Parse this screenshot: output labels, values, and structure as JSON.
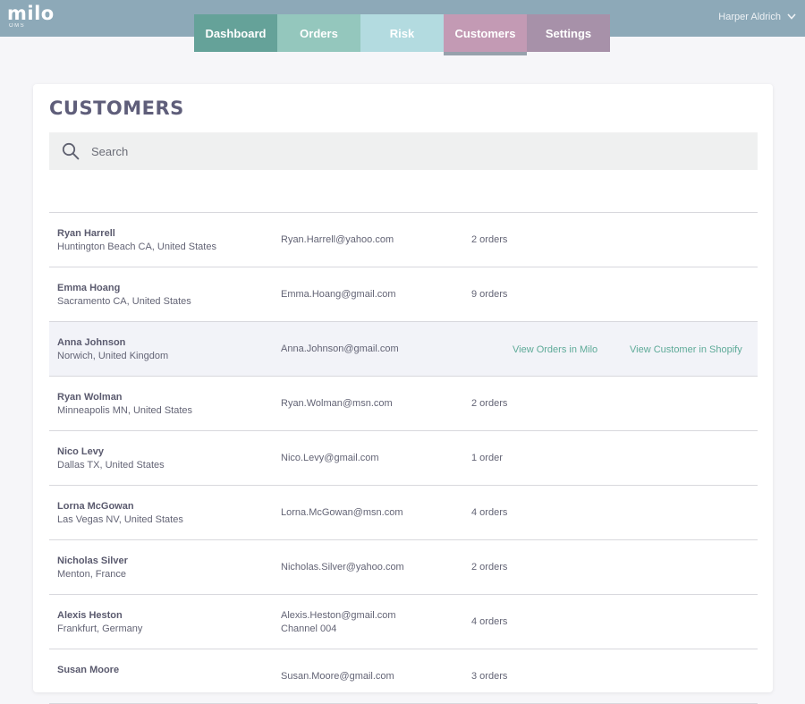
{
  "app": {
    "logo": "milo",
    "logo_sub": "OMS"
  },
  "nav": {
    "tabs": [
      {
        "label": "Dashboard"
      },
      {
        "label": "Orders"
      },
      {
        "label": "Risk"
      },
      {
        "label": "Customers",
        "active": true
      },
      {
        "label": "Settings"
      }
    ]
  },
  "user": {
    "name": "Harper Aldrich",
    "menu_icon": "chevron-down-icon"
  },
  "page": {
    "title": "CUSTOMERS"
  },
  "search": {
    "placeholder": "Search",
    "value": "",
    "icon": "search-icon"
  },
  "customers": [
    {
      "name": "Ryan Harrell",
      "location": "Huntington Beach CA, United States",
      "email": "Ryan.Harrell@yahoo.com",
      "orders": "2 orders"
    },
    {
      "name": "Emma Hoang",
      "location": "Sacramento CA, United States",
      "email": "Emma.Hoang@gmail.com",
      "orders": "9 orders"
    },
    {
      "name": "Anna Johnson",
      "location": "Norwich, United Kingdom",
      "email": "Anna.Johnson@gmail.com",
      "hovered": true,
      "link_orders": "View Orders in Milo",
      "link_shopify": "View Customer in Shopify"
    },
    {
      "name": "Ryan Wolman",
      "location": "Minneapolis MN, United States",
      "email": "Ryan.Wolman@msn.com",
      "orders": "2 orders"
    },
    {
      "name": "Nico Levy",
      "location": "Dallas TX, United States",
      "email": "Nico.Levy@gmail.com",
      "orders": "1 order"
    },
    {
      "name": "Lorna McGowan",
      "location": "Las Vegas NV, United States",
      "email": "Lorna.McGowan@msn.com",
      "orders": "4 orders"
    },
    {
      "name": "Nicholas Silver",
      "location": "Menton, France",
      "email": "Nicholas.Silver@yahoo.com",
      "orders": "2 orders"
    },
    {
      "name": "Alexis Heston",
      "location": "Frankfurt, Germany",
      "email": "Alexis.Heston@gmail.com",
      "email_line2": "Channel 004",
      "orders": "4 orders"
    },
    {
      "name": "Susan Moore",
      "location": "",
      "email": "Susan.Moore@gmail.com",
      "orders": "3 orders"
    }
  ],
  "colors": {
    "topbar": "#8da9b8",
    "tab_dashboard": "#65a299",
    "tab_orders": "#94c7bd",
    "tab_risk": "#b3dbe0",
    "tab_customers": "#c39ab4",
    "tab_settings": "#a791a9",
    "link": "#5eaa98"
  }
}
